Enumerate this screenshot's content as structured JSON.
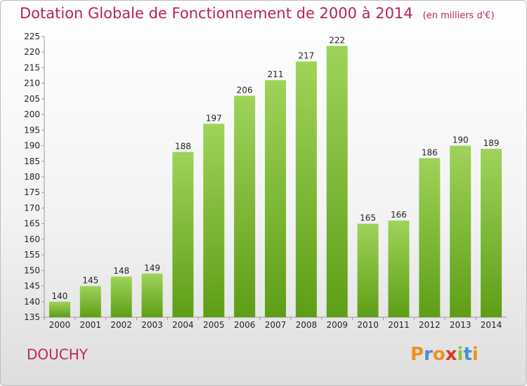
{
  "title": "Dotation Globale de Fonctionnement de 2000 à 2014",
  "unit": "(en milliers d'€)",
  "commune": "DOUCHY",
  "logo": {
    "letters": [
      "P",
      "r",
      "o",
      "x",
      "i",
      "t",
      "i"
    ],
    "colors": [
      "#f0901e",
      "#4a8fd4",
      "#f0901e",
      "#d93b2b",
      "#8ec63f",
      "#4a8fd4",
      "#f0901e"
    ]
  },
  "colors": {
    "title": "#b5235b",
    "bar_top": "#9fd35a",
    "bar_bottom": "#5e9e16",
    "axis": "#999999"
  },
  "chart_data": {
    "type": "bar",
    "title": "Dotation Globale de Fonctionnement de 2000 à 2014",
    "categories": [
      "2000",
      "2001",
      "2002",
      "2003",
      "2004",
      "2005",
      "2006",
      "2007",
      "2008",
      "2009",
      "2010",
      "2011",
      "2012",
      "2013",
      "2014"
    ],
    "values": [
      140,
      145,
      148,
      149,
      188,
      197,
      206,
      211,
      217,
      222,
      165,
      166,
      186,
      190,
      189
    ],
    "ylim": [
      135,
      225
    ],
    "yticks": [
      135,
      140,
      145,
      150,
      155,
      160,
      165,
      170,
      175,
      180,
      185,
      190,
      195,
      200,
      205,
      210,
      215,
      220,
      225
    ],
    "grid": false,
    "legend": "none"
  }
}
